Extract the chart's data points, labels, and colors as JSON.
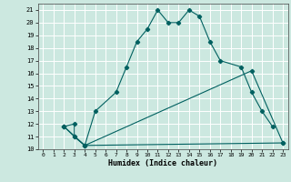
{
  "xlabel": "Humidex (Indice chaleur)",
  "bg_color": "#cce8e0",
  "grid_color": "#ffffff",
  "line_color": "#006060",
  "xlim": [
    -0.5,
    23.5
  ],
  "ylim": [
    10,
    21.5
  ],
  "xticks": [
    0,
    1,
    2,
    3,
    4,
    5,
    6,
    7,
    8,
    9,
    10,
    11,
    12,
    13,
    14,
    15,
    16,
    17,
    18,
    19,
    20,
    21,
    22,
    23
  ],
  "yticks": [
    10,
    11,
    12,
    13,
    14,
    15,
    16,
    17,
    18,
    19,
    20,
    21
  ],
  "curve1_x": [
    2,
    3,
    3,
    4,
    5,
    7,
    8,
    9,
    10,
    11,
    12,
    13,
    14,
    15,
    16,
    17,
    19,
    20,
    21,
    22
  ],
  "curve1_y": [
    11.8,
    12.0,
    11.0,
    10.3,
    13.0,
    14.5,
    16.5,
    18.5,
    19.5,
    21.0,
    20.0,
    20.0,
    21.0,
    20.5,
    18.5,
    17.0,
    16.5,
    14.5,
    13.0,
    11.8
  ],
  "curve2_x": [
    2,
    3,
    4,
    23
  ],
  "curve2_y": [
    11.8,
    11.0,
    10.3,
    10.5
  ],
  "curve3_x": [
    2,
    4,
    20,
    23
  ],
  "curve3_y": [
    11.8,
    10.3,
    16.2,
    10.5
  ]
}
